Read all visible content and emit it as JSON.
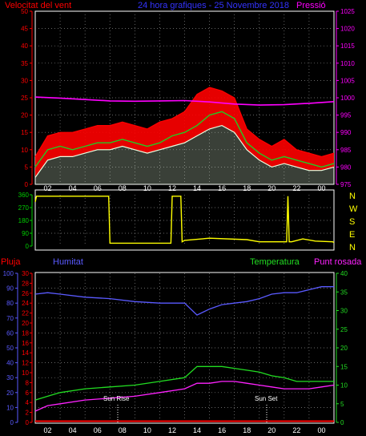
{
  "header": {
    "left_label": "Velocitat del vent",
    "center_label": "24 hora grafiques - 25 Novembre 2018",
    "right_label": "Pressió"
  },
  "colors": {
    "background": "#000000",
    "wind_gust": "#ff0000",
    "wind_avg": "#22cc22",
    "wind_min": "#e8ffe0",
    "pressure": "#ff00ff",
    "direction": "#ffff00",
    "humidity": "#5a5aff",
    "temperature": "#22dd22",
    "dewpoint": "#ff22ff",
    "rain": "#ff0000",
    "axis_green": "#00cc00",
    "axis_label_yellow": "#ffff00"
  },
  "lower_labels": {
    "rain": "Pluja",
    "humidity": "Humitat",
    "temperature": "Temperatura",
    "dewpoint": "Punt rosada"
  },
  "direction_labels": [
    "N",
    "W",
    "S",
    "E",
    "N"
  ],
  "annotations": {
    "sun_rise": "Sun Rise",
    "sun_set": "Sun Set"
  },
  "chart_data": [
    {
      "type": "line",
      "name": "wind-pressure",
      "x_ticks": [
        "02",
        "04",
        "06",
        "08",
        "10",
        "12",
        "14",
        "16",
        "18",
        "20",
        "22",
        "00"
      ],
      "y_left_ticks": [
        "0",
        "5",
        "10",
        "15",
        "20",
        "25",
        "30",
        "35",
        "40",
        "45",
        "50"
      ],
      "y_left_lim": [
        0,
        50
      ],
      "y_right_ticks": [
        "975",
        "980",
        "985",
        "990",
        "995",
        "1000",
        "1005",
        "1010",
        "1015",
        "1020",
        "1025"
      ],
      "y_right_lim": [
        975,
        1025
      ],
      "series": [
        {
          "name": "Velocitat del vent",
          "key": "gust",
          "x": [
            0,
            1,
            2,
            3,
            4,
            5,
            6,
            7,
            8,
            9,
            10,
            11,
            12,
            13,
            14,
            15,
            16,
            17,
            18,
            19,
            20,
            21,
            22,
            23,
            24
          ],
          "values": [
            8,
            14,
            15,
            15,
            16,
            17,
            17,
            18,
            17,
            16,
            18,
            19,
            21,
            26,
            28,
            27,
            25,
            16,
            13,
            11,
            13,
            10,
            9,
            8,
            9
          ]
        },
        {
          "name": "avg",
          "key": "avg",
          "x": [
            0,
            1,
            2,
            3,
            4,
            5,
            6,
            7,
            8,
            9,
            10,
            11,
            12,
            13,
            14,
            15,
            16,
            17,
            18,
            19,
            20,
            21,
            22,
            23,
            24
          ],
          "values": [
            5,
            10,
            11,
            10,
            11,
            12,
            12,
            13,
            12,
            11,
            12,
            14,
            15,
            17,
            20,
            21,
            19,
            12,
            9,
            7,
            8,
            7,
            6,
            5,
            6
          ]
        },
        {
          "name": "min",
          "key": "min",
          "x": [
            0,
            1,
            2,
            3,
            4,
            5,
            6,
            7,
            8,
            9,
            10,
            11,
            12,
            13,
            14,
            15,
            16,
            17,
            18,
            19,
            20,
            21,
            22,
            23,
            24
          ],
          "values": [
            2,
            7,
            8,
            8,
            9,
            10,
            10,
            11,
            10,
            9,
            10,
            11,
            12,
            14,
            16,
            17,
            15,
            10,
            7,
            5,
            6,
            5,
            4,
            4,
            5
          ]
        },
        {
          "name": "Pressió",
          "key": "pressure",
          "x": [
            0,
            2,
            4,
            6,
            8,
            10,
            12,
            14,
            16,
            18,
            20,
            22,
            24
          ],
          "values": [
            1000.2,
            999.9,
            999.5,
            999.1,
            999.0,
            999.1,
            999.2,
            998.8,
            998.2,
            997.9,
            998.0,
            998.4,
            998.9
          ]
        }
      ]
    },
    {
      "type": "line",
      "name": "wind-direction",
      "y_left_ticks": [
        "0",
        "90",
        "180",
        "270",
        "360"
      ],
      "y_lim": [
        0,
        360
      ],
      "series": [
        {
          "name": "direction",
          "x": [
            0,
            0.1,
            5.9,
            6.0,
            10.9,
            11.0,
            11.7,
            11.8,
            12.0,
            14.0,
            17.0,
            18.0,
            20.2,
            20.3,
            20.4,
            20.6,
            21.5,
            22.5,
            23.9,
            24.0
          ],
          "values": [
            310,
            350,
            350,
            20,
            20,
            350,
            350,
            30,
            40,
            55,
            45,
            30,
            30,
            350,
            30,
            30,
            50,
            35,
            30,
            25
          ]
        }
      ]
    },
    {
      "type": "line",
      "name": "humidity-temperature",
      "y_left_outer_ticks": [
        "0",
        "10",
        "20",
        "30",
        "40",
        "50",
        "60",
        "70",
        "80",
        "90",
        "100"
      ],
      "y_left_inner_ticks": [
        "0",
        "2",
        "4",
        "6",
        "8",
        "10",
        "12",
        "14",
        "16",
        "18",
        "20",
        "22",
        "24",
        "26",
        "28",
        "30"
      ],
      "y_right_ticks": [
        "0",
        "5",
        "10",
        "15",
        "20",
        "25",
        "30",
        "35",
        "40"
      ],
      "series": [
        {
          "name": "Humitat",
          "axis": "outer",
          "lim": [
            0,
            100
          ],
          "x": [
            0,
            1,
            2,
            4,
            6,
            8,
            10,
            12,
            13,
            14,
            15,
            16,
            17,
            18,
            19,
            20,
            21,
            22,
            23,
            24
          ],
          "values": [
            86,
            87,
            86,
            84,
            83,
            81,
            80,
            80,
            72,
            76,
            79,
            80,
            81,
            83,
            86,
            87,
            87,
            89,
            91,
            91
          ]
        },
        {
          "name": "Temperatura",
          "axis": "right",
          "lim": [
            0,
            40
          ],
          "x": [
            0,
            1,
            2,
            4,
            6,
            8,
            10,
            12,
            13,
            14,
            15,
            16,
            17,
            18,
            19,
            20,
            21,
            22,
            23,
            24
          ],
          "values": [
            6,
            7,
            8,
            9,
            9.5,
            10,
            11,
            12,
            15,
            15,
            15,
            14.5,
            14,
            13.5,
            12.5,
            12,
            11,
            11,
            11,
            11
          ]
        },
        {
          "name": "Punt rosada",
          "axis": "right",
          "lim": [
            0,
            40
          ],
          "x": [
            0,
            1,
            2,
            4,
            6,
            8,
            10,
            12,
            13,
            14,
            15,
            16,
            17,
            18,
            19,
            20,
            21,
            22,
            23,
            24
          ],
          "values": [
            3,
            4.5,
            5,
            6,
            6.5,
            7,
            8,
            9,
            10.5,
            10.5,
            11,
            11,
            10.5,
            10,
            9.5,
            9,
            9,
            9,
            9.5,
            10
          ]
        },
        {
          "name": "Pluja",
          "axis": "inner",
          "lim": [
            0,
            30
          ],
          "x": [
            0,
            24
          ],
          "values": [
            0,
            0
          ]
        }
      ]
    }
  ]
}
